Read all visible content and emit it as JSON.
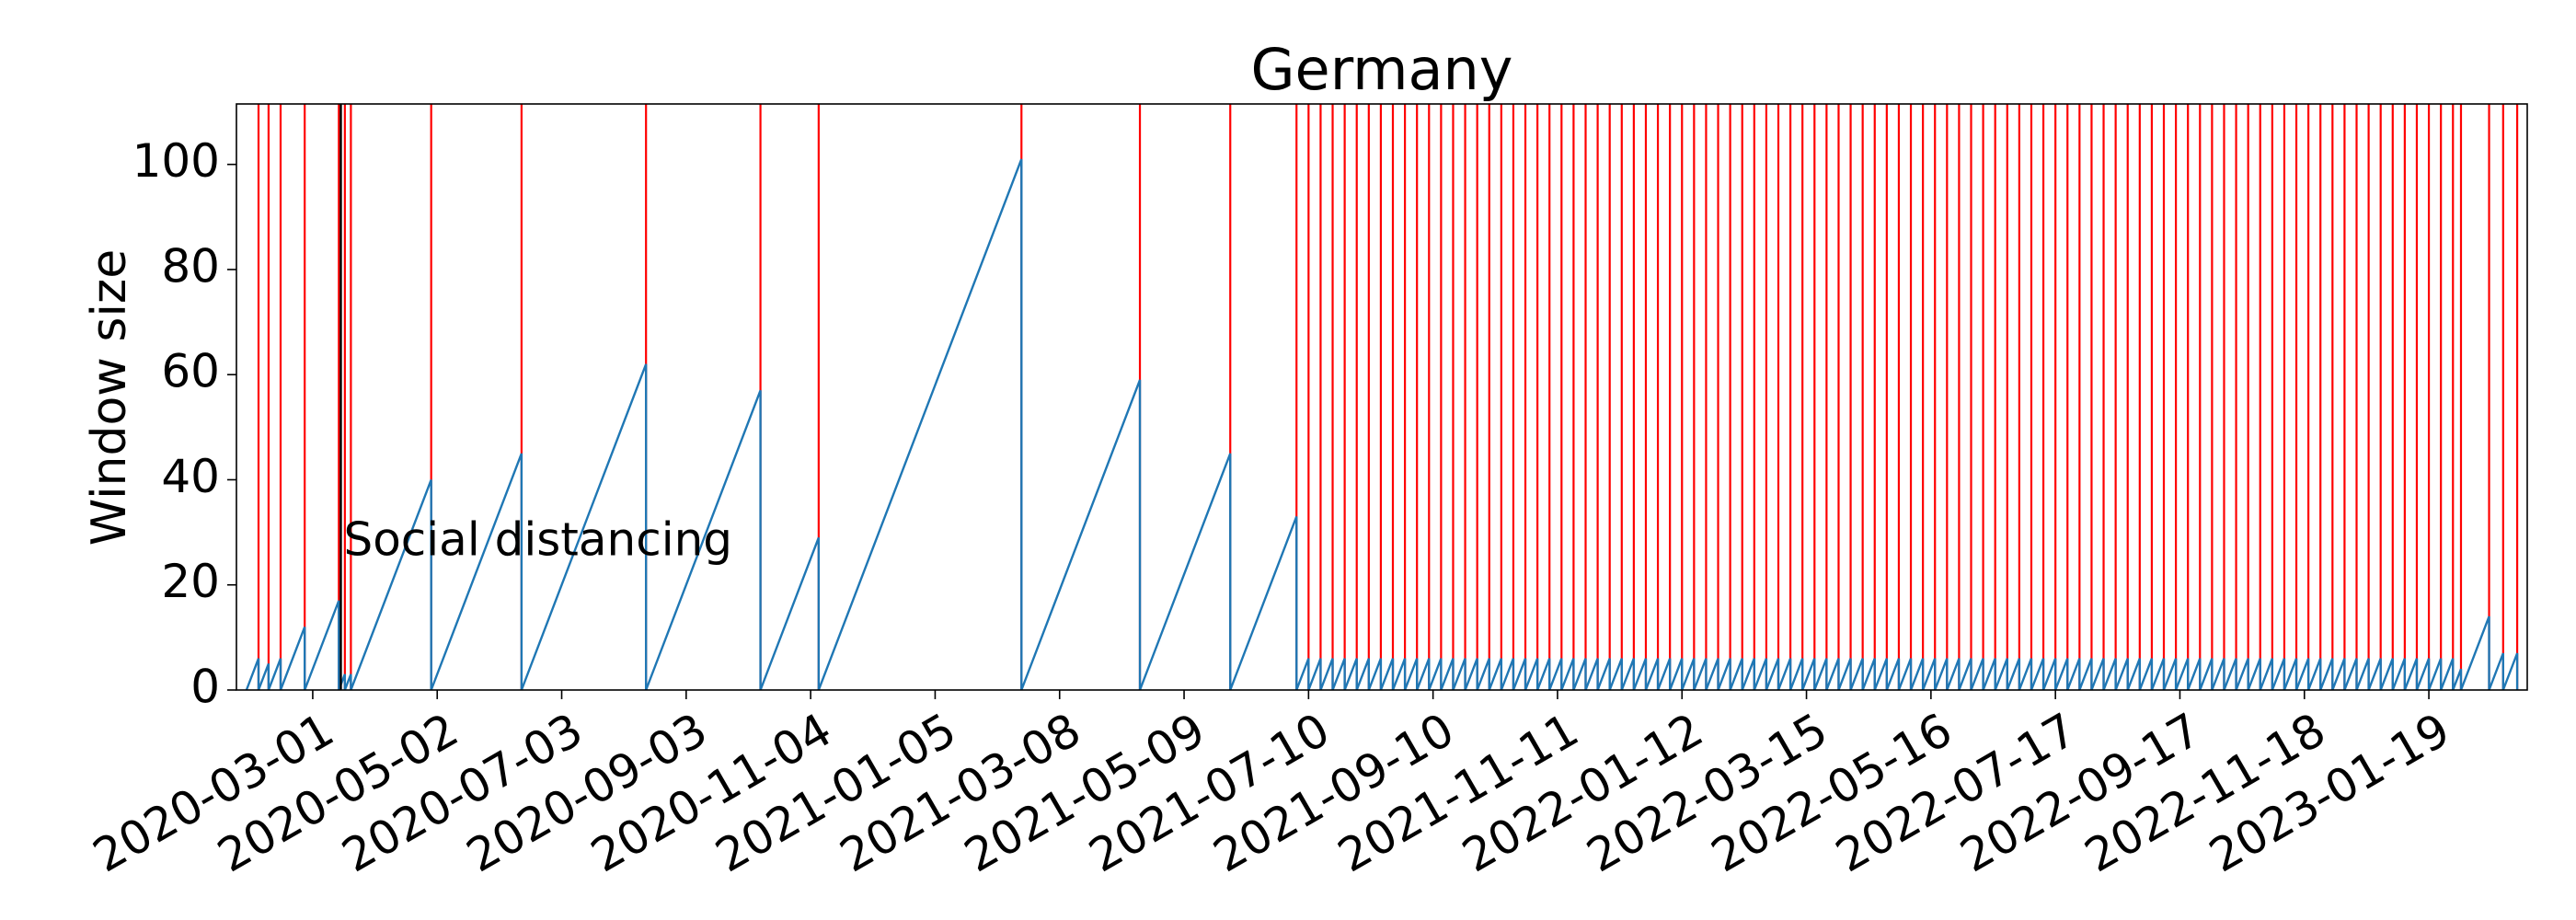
{
  "chart_data": {
    "type": "line",
    "title": "Germany",
    "ylabel": "Window size",
    "series": [
      {
        "color": "#1f77b4",
        "x": [
          "2020-01-28",
          "2020-02-03",
          "2020-02-08",
          "2020-02-14",
          "2020-02-26",
          "2020-03-14",
          "2020-03-17",
          "2020-03-20",
          "2020-04-29",
          "2020-06-13",
          "2020-08-14",
          "2020-10-10",
          "2020-11-08",
          "2021-02-17",
          "2021-04-17",
          "2021-06-01",
          "2021-07-04",
          "2021-07-10",
          "2021-07-16",
          "2021-07-22",
          "2021-07-28",
          "2021-08-03",
          "2021-08-09",
          "2021-08-15",
          "2021-08-21",
          "2021-08-27",
          "2021-09-02",
          "2021-09-08",
          "2021-09-14",
          "2021-09-20",
          "2021-09-26",
          "2021-10-02",
          "2021-10-08",
          "2021-10-14",
          "2021-10-20",
          "2021-10-26",
          "2021-11-01",
          "2021-11-07",
          "2021-11-13",
          "2021-11-19",
          "2021-11-25",
          "2021-12-01",
          "2021-12-07",
          "2021-12-13",
          "2021-12-19",
          "2021-12-25",
          "2021-12-31",
          "2022-01-06",
          "2022-01-12",
          "2022-01-18",
          "2022-01-24",
          "2022-01-30",
          "2022-02-05",
          "2022-02-11",
          "2022-02-17",
          "2022-02-23",
          "2022-03-01",
          "2022-03-07",
          "2022-03-13",
          "2022-03-19",
          "2022-03-25",
          "2022-03-31",
          "2022-04-06",
          "2022-04-12",
          "2022-04-18",
          "2022-04-24",
          "2022-04-30",
          "2022-05-06",
          "2022-05-12",
          "2022-05-18",
          "2022-05-24",
          "2022-05-30",
          "2022-06-05",
          "2022-06-11",
          "2022-06-17",
          "2022-06-23",
          "2022-06-29",
          "2022-07-05",
          "2022-07-11",
          "2022-07-17",
          "2022-07-23",
          "2022-07-29",
          "2022-08-04",
          "2022-08-10",
          "2022-08-16",
          "2022-08-22",
          "2022-08-28",
          "2022-09-03",
          "2022-09-09",
          "2022-09-15",
          "2022-09-21",
          "2022-09-27",
          "2022-10-03",
          "2022-10-09",
          "2022-10-15",
          "2022-10-21",
          "2022-10-27",
          "2022-11-02",
          "2022-11-08",
          "2022-11-14",
          "2022-11-20",
          "2022-11-26",
          "2022-12-02",
          "2022-12-08",
          "2022-12-14",
          "2022-12-20",
          "2022-12-26",
          "2023-01-01",
          "2023-01-07",
          "2023-01-13",
          "2023-01-19",
          "2023-01-25",
          "2023-01-31",
          "2023-02-04",
          "2023-02-18",
          "2023-02-25",
          "2023-03-04"
        ],
        "values": [
          0,
          6,
          5,
          6,
          12,
          17,
          3,
          3,
          40,
          45,
          62,
          57,
          29,
          101,
          59,
          45,
          33,
          6,
          6,
          6,
          6,
          6,
          6,
          6,
          6,
          6,
          6,
          6,
          6,
          6,
          6,
          6,
          6,
          6,
          6,
          6,
          6,
          6,
          6,
          6,
          6,
          6,
          6,
          6,
          6,
          6,
          6,
          6,
          6,
          6,
          6,
          6,
          6,
          6,
          6,
          6,
          6,
          6,
          6,
          6,
          6,
          6,
          6,
          6,
          6,
          6,
          6,
          6,
          6,
          6,
          6,
          6,
          6,
          6,
          6,
          6,
          6,
          6,
          6,
          6,
          6,
          6,
          6,
          6,
          6,
          6,
          6,
          6,
          6,
          6,
          6,
          6,
          6,
          6,
          6,
          6,
          6,
          6,
          6,
          6,
          6,
          6,
          6,
          6,
          6,
          6,
          6,
          6,
          6,
          6,
          6,
          6,
          6,
          4,
          14,
          7,
          7
        ]
      }
    ],
    "change_line_color": "#ff0000",
    "annotation": {
      "text": "Social distancing",
      "x": "2020-03-15",
      "color": "#000000"
    },
    "xlim": [
      "2020-01-23",
      "2023-03-09"
    ],
    "xticks": [
      "2020-03-01",
      "2020-05-02",
      "2020-07-03",
      "2020-09-03",
      "2020-11-04",
      "2021-01-05",
      "2021-03-08",
      "2021-05-09",
      "2021-07-10",
      "2021-09-10",
      "2021-11-11",
      "2022-01-12",
      "2022-03-15",
      "2022-05-16",
      "2022-07-17",
      "2022-09-17",
      "2022-11-18",
      "2023-01-19"
    ],
    "ylim": [
      0,
      111.5
    ],
    "yticks": [
      0,
      20,
      40,
      60,
      80,
      100
    ]
  }
}
